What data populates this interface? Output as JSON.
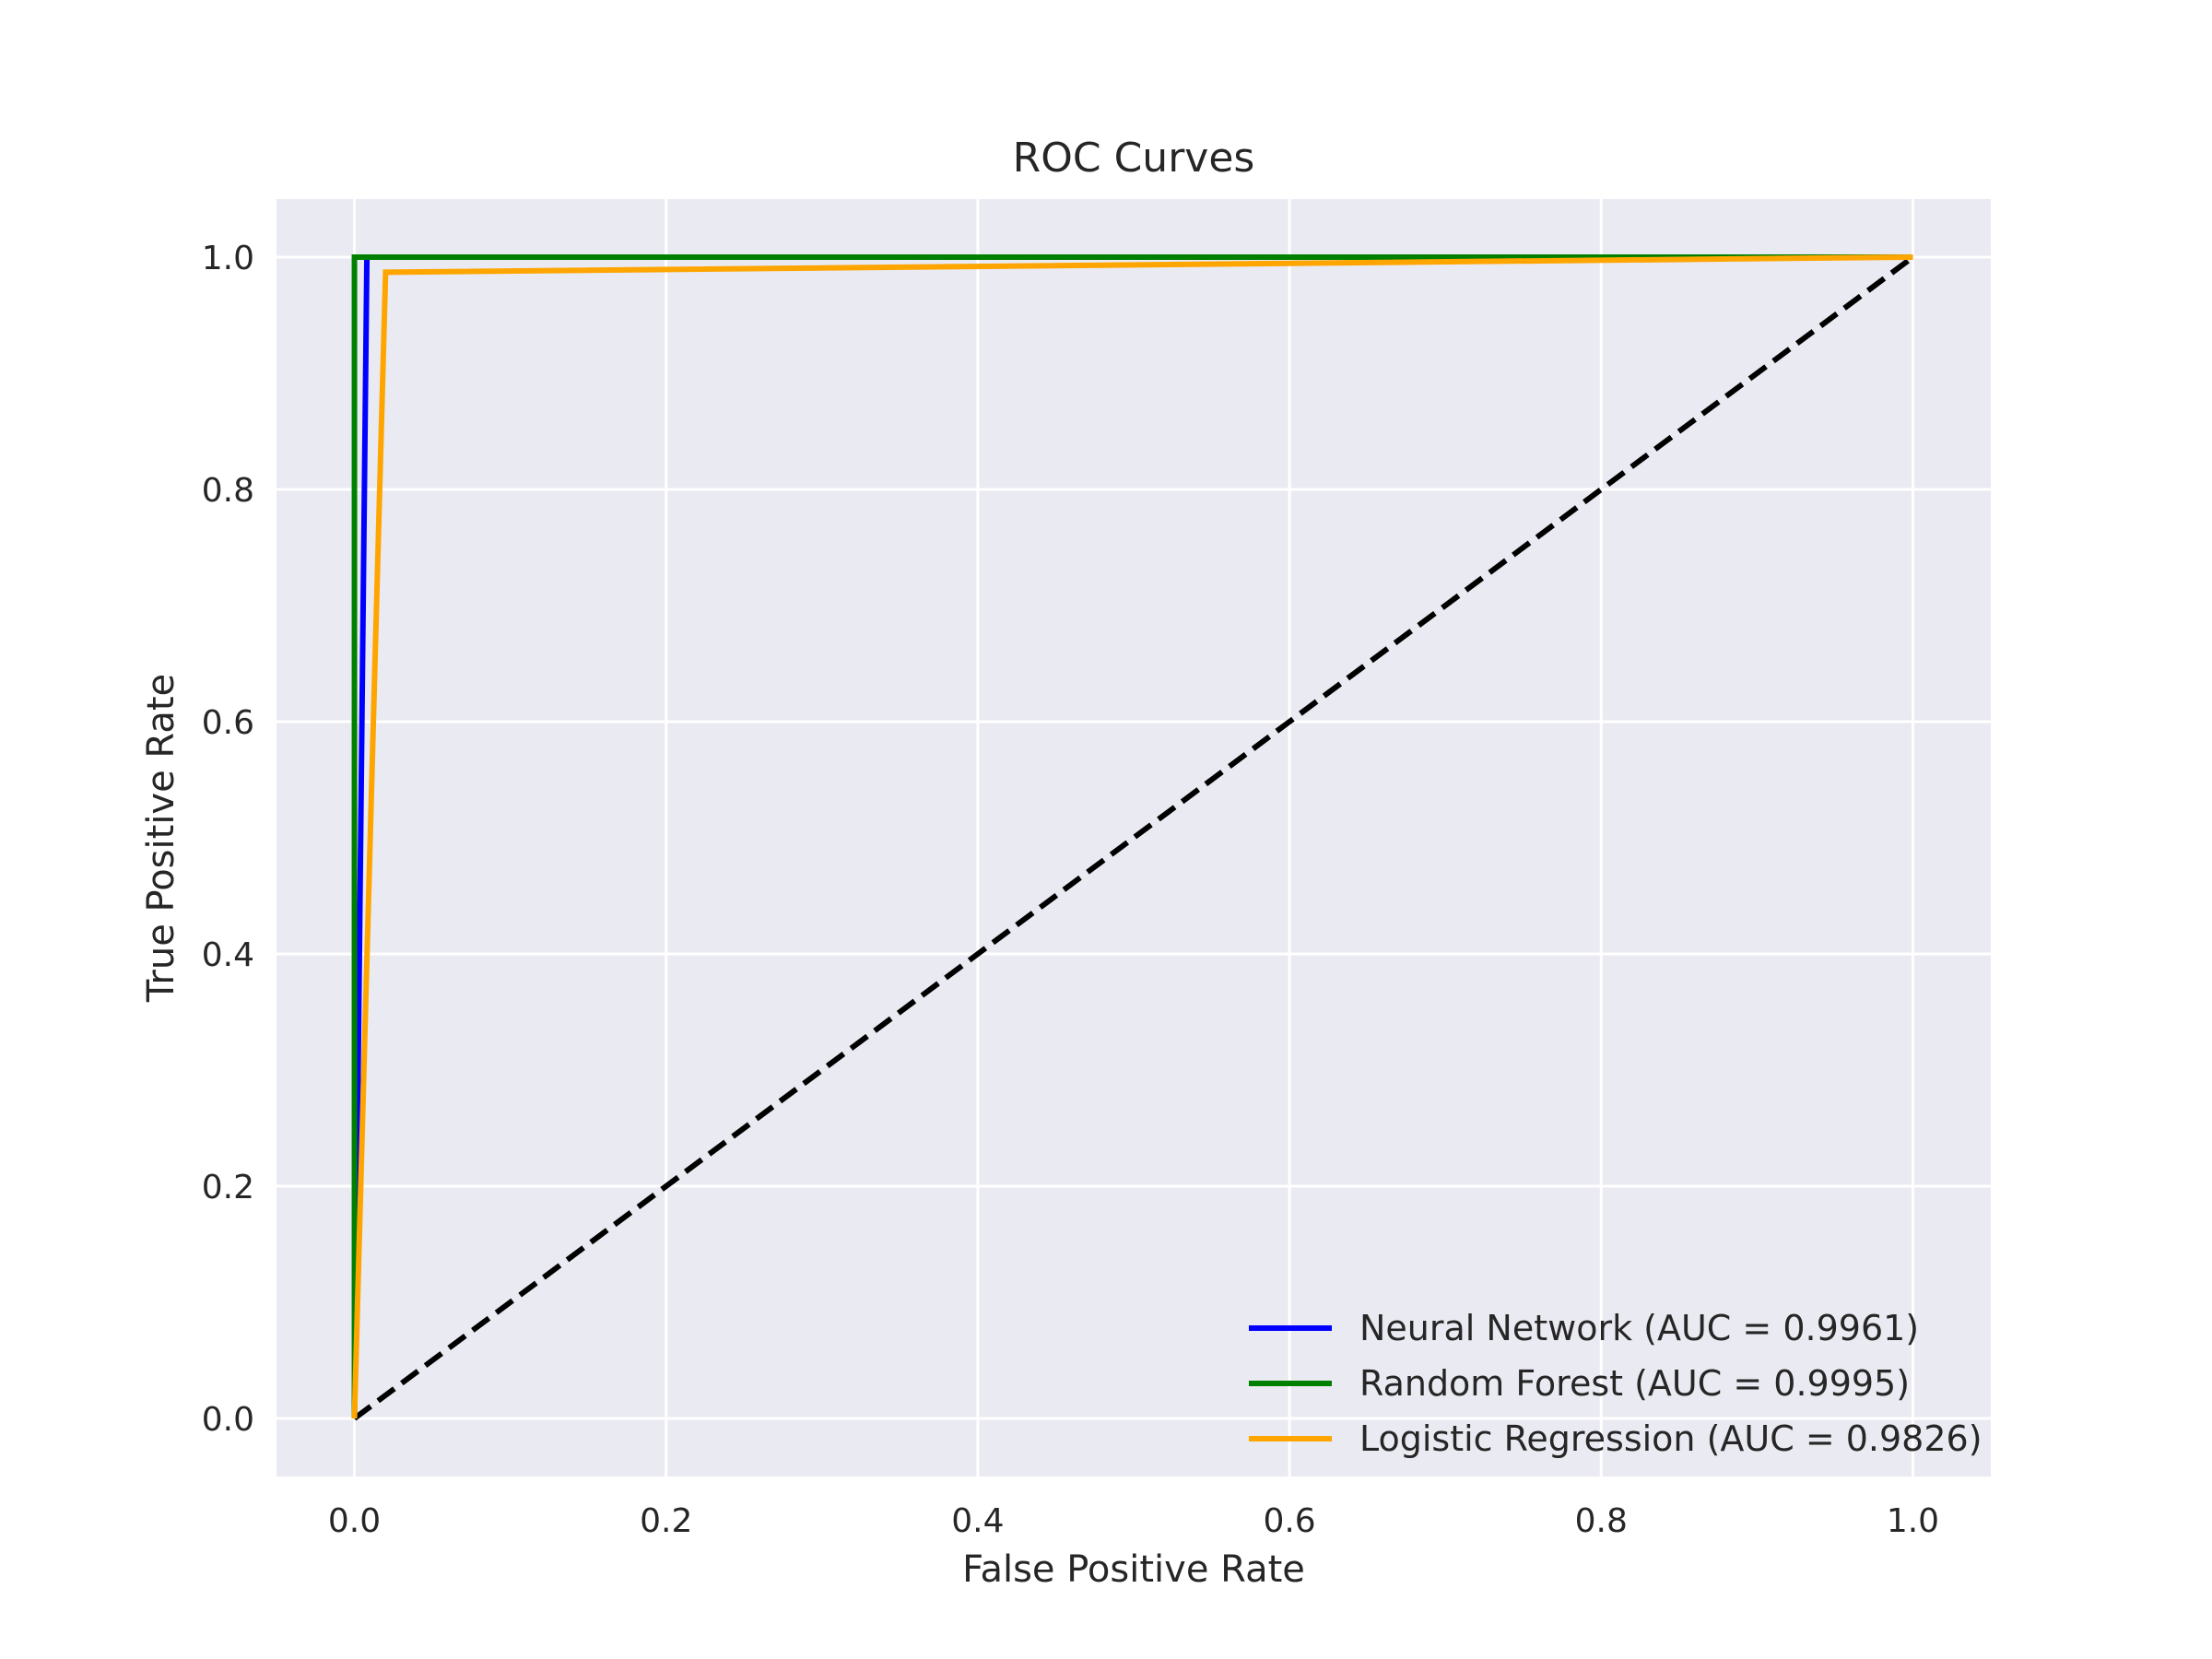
{
  "chart_data": {
    "type": "line",
    "title": "ROC Curves",
    "xlabel": "False Positive Rate",
    "ylabel": "True Positive Rate",
    "xlim": [
      -0.05,
      1.05
    ],
    "ylim": [
      -0.05,
      1.05
    ],
    "xticks": [
      0.0,
      0.2,
      0.4,
      0.6,
      0.8,
      1.0
    ],
    "yticks": [
      0.0,
      0.2,
      0.4,
      0.6,
      0.8,
      1.0
    ],
    "xtick_labels": [
      "0.0",
      "0.2",
      "0.4",
      "0.6",
      "0.8",
      "1.0"
    ],
    "ytick_labels": [
      "0.0",
      "0.2",
      "0.4",
      "0.6",
      "0.8",
      "1.0"
    ],
    "grid": true,
    "background": "#eaeaf2",
    "legend_position": "lower-right",
    "series": [
      {
        "name": "Neural Network (AUC = 0.9961)",
        "color": "#0000ff",
        "x": [
          0.0,
          0.008,
          1.0
        ],
        "y": [
          0.0,
          1.0,
          1.0
        ]
      },
      {
        "name": "Random Forest (AUC = 0.9995)",
        "color": "#008000",
        "x": [
          0.0,
          0.0,
          1.0
        ],
        "y": [
          0.0,
          1.0,
          1.0
        ]
      },
      {
        "name": "Logistic Regression (AUC = 0.9826)",
        "color": "#ffa500",
        "x": [
          0.0,
          0.02,
          1.0
        ],
        "y": [
          0.0,
          0.987,
          1.0
        ]
      }
    ],
    "reference_line": {
      "color": "#000000",
      "style": "dashed",
      "x": [
        0.0,
        1.0
      ],
      "y": [
        0.0,
        1.0
      ]
    }
  }
}
